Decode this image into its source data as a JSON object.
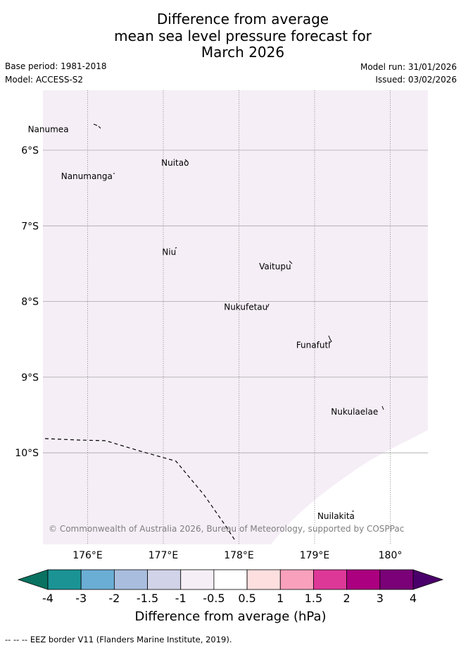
{
  "title": {
    "line1": "Difference from average",
    "line2": "mean sea level pressure forecast for",
    "line3": "March 2026"
  },
  "meta": {
    "base_period": "Base period: 1981-2018",
    "model": "Model: ACCESS-S2",
    "model_run": "Model run: 31/01/2026",
    "issued": "Issued: 03/02/2026"
  },
  "map": {
    "lat_labels": [
      "6°S",
      "7°S",
      "8°S",
      "9°S",
      "10°S"
    ],
    "lon_labels": [
      "176°E",
      "177°E",
      "178°E",
      "179°E",
      "180°"
    ],
    "background_fill": "#f5eef6",
    "places": [
      {
        "name": "Nanumea",
        "lon": 175.74,
        "lat": -5.67
      },
      {
        "name": "Nuitao",
        "lon": 177.33,
        "lat": -6.11
      },
      {
        "name": "Nanumanga",
        "lon": 176.32,
        "lat": -6.29
      },
      {
        "name": "Niu",
        "lon": 177.16,
        "lat": -7.29
      },
      {
        "name": "Vaitupu",
        "lon": 178.68,
        "lat": -7.48
      },
      {
        "name": "Nukufetau",
        "lon": 178.37,
        "lat": -8.02
      },
      {
        "name": "Funafuti",
        "lon": 179.2,
        "lat": -8.52
      },
      {
        "name": "Nukulaelae",
        "lon": 179.83,
        "lat": -9.4
      },
      {
        "name": "Nuilakita",
        "lon": 179.52,
        "lat": -10.78
      }
    ],
    "copyright": "© Commonwealth of Australia 2026, Bureau of Meteorology, supported by COSPPac"
  },
  "colorbar": {
    "ticks": [
      "-4",
      "-3",
      "-2",
      "-1.5",
      "-1",
      "-0.5",
      "0.5",
      "1",
      "1.5",
      "2",
      "3",
      "4"
    ],
    "colors": [
      "#1b9394",
      "#6aaed5",
      "#a9bede",
      "#d1d3e8",
      "#f5eef6",
      "#ffffff",
      "#fddfe0",
      "#f8a0bc",
      "#dd3898",
      "#ab007f",
      "#7a0177"
    ],
    "under_color": "#0a7260",
    "over_color": "#4a006a",
    "label": "Difference from average (hPa)"
  },
  "legend": {
    "eez_text": "--  --  -- EEZ border V11 (Flanders Marine Institute, 2019)."
  }
}
